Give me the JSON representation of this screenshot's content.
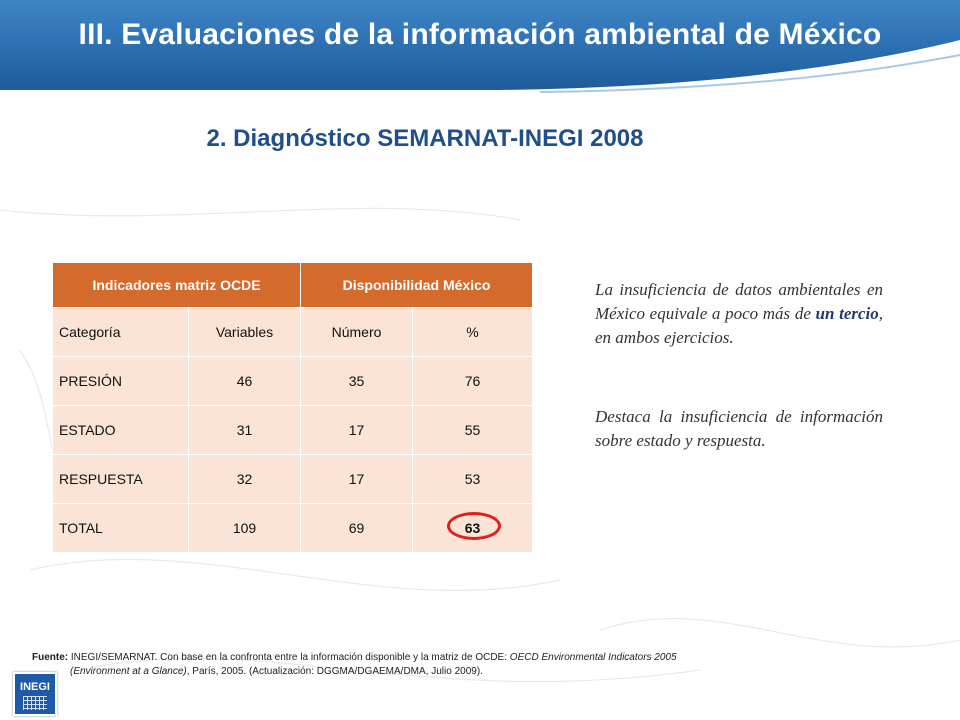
{
  "header": {
    "title": "III. Evaluaciones de la información ambiental de México"
  },
  "subtitle": "2. Diagnóstico SEMARNAT-INEGI 2008",
  "table": {
    "group_headers": [
      "Indicadores matriz OCDE",
      "Disponibilidad  México"
    ],
    "columns": [
      "Categoría",
      "Variables",
      "Número",
      "%"
    ],
    "rows": [
      [
        "PRESIÓN",
        "46",
        "35",
        "76"
      ],
      [
        "ESTADO",
        "31",
        "17",
        "55"
      ],
      [
        "RESPUESTA",
        "32",
        "17",
        "53"
      ],
      [
        "TOTAL",
        "109",
        "69",
        "63"
      ]
    ],
    "highlighted_cell": "63"
  },
  "notes": {
    "p1_before": "La insuficiencia de datos ambientales en México equivale a poco más de ",
    "p1_emphasis": "un tercio",
    "p1_after": ", en ambos ejercicios.",
    "p2": "Destaca la insuficiencia de información sobre estado y respuesta."
  },
  "source": {
    "label": "Fuente:",
    "text1": " INEGI/SEMARNAT.  Con base en la confronta entre la información disponible y la matriz  de OCDE: ",
    "italic1": "OECD Environmental Indicators 2005",
    "italic2": "(Environment  at a Glance)",
    "text2": ", París, 2005. (Actualización: DGGMA/DGAEMA/DMA, Julio 2009)."
  },
  "logo": {
    "text": "INEGI",
    "icon": "inegi-logo-icon"
  },
  "colors": {
    "header_blue": "#2a6eb0",
    "table_header": "#d46a2c",
    "table_cell": "#fbe3d6",
    "highlight_circle": "#e0201b",
    "subtitle": "#1f4e8a"
  }
}
